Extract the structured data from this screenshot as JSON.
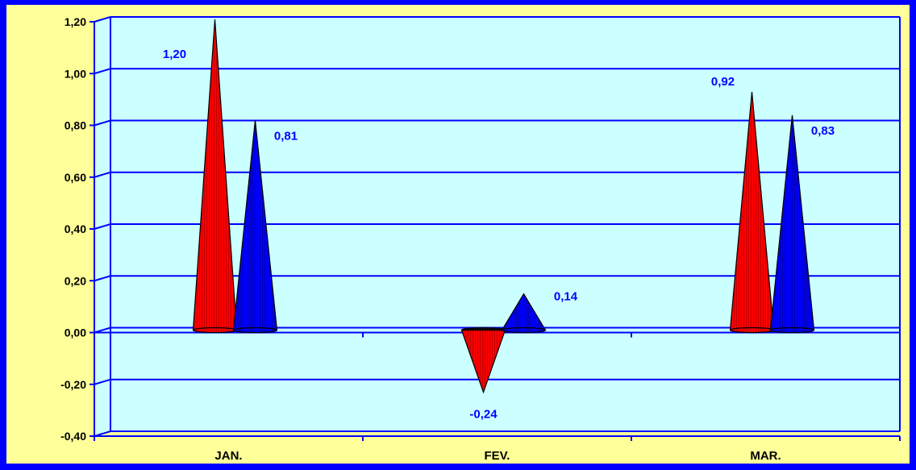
{
  "colors": {
    "border": "#0000ff",
    "outer_background": "#ffff99",
    "plot_background": "#ccffff",
    "gridline": "#0000ff",
    "series_colors": [
      "#ff0000",
      "#0000ff"
    ]
  },
  "chart_data": {
    "type": "bar",
    "bar_shape": "cone",
    "categories": [
      "JAN.",
      "FEV.",
      "MAR."
    ],
    "series": [
      {
        "values": [
          1.2,
          -0.24,
          0.92
        ],
        "labels": [
          "1,20",
          "-0,24",
          "0,92"
        ],
        "color": "#ff0000"
      },
      {
        "values": [
          0.81,
          0.14,
          0.83
        ],
        "labels": [
          "0,81",
          "0,14",
          "0,83"
        ],
        "color": "#0000ff"
      }
    ],
    "ylim": [
      -0.4,
      1.2
    ],
    "yticks": [
      -0.4,
      -0.2,
      0.0,
      0.2,
      0.4,
      0.6,
      0.8,
      1.0,
      1.2
    ],
    "ytick_labels": [
      "-0,40",
      "-0,20",
      "0,00",
      "0,20",
      "0,40",
      "0,60",
      "0,80",
      "1,00",
      "1,20"
    ],
    "grid": true,
    "legend": "none"
  }
}
